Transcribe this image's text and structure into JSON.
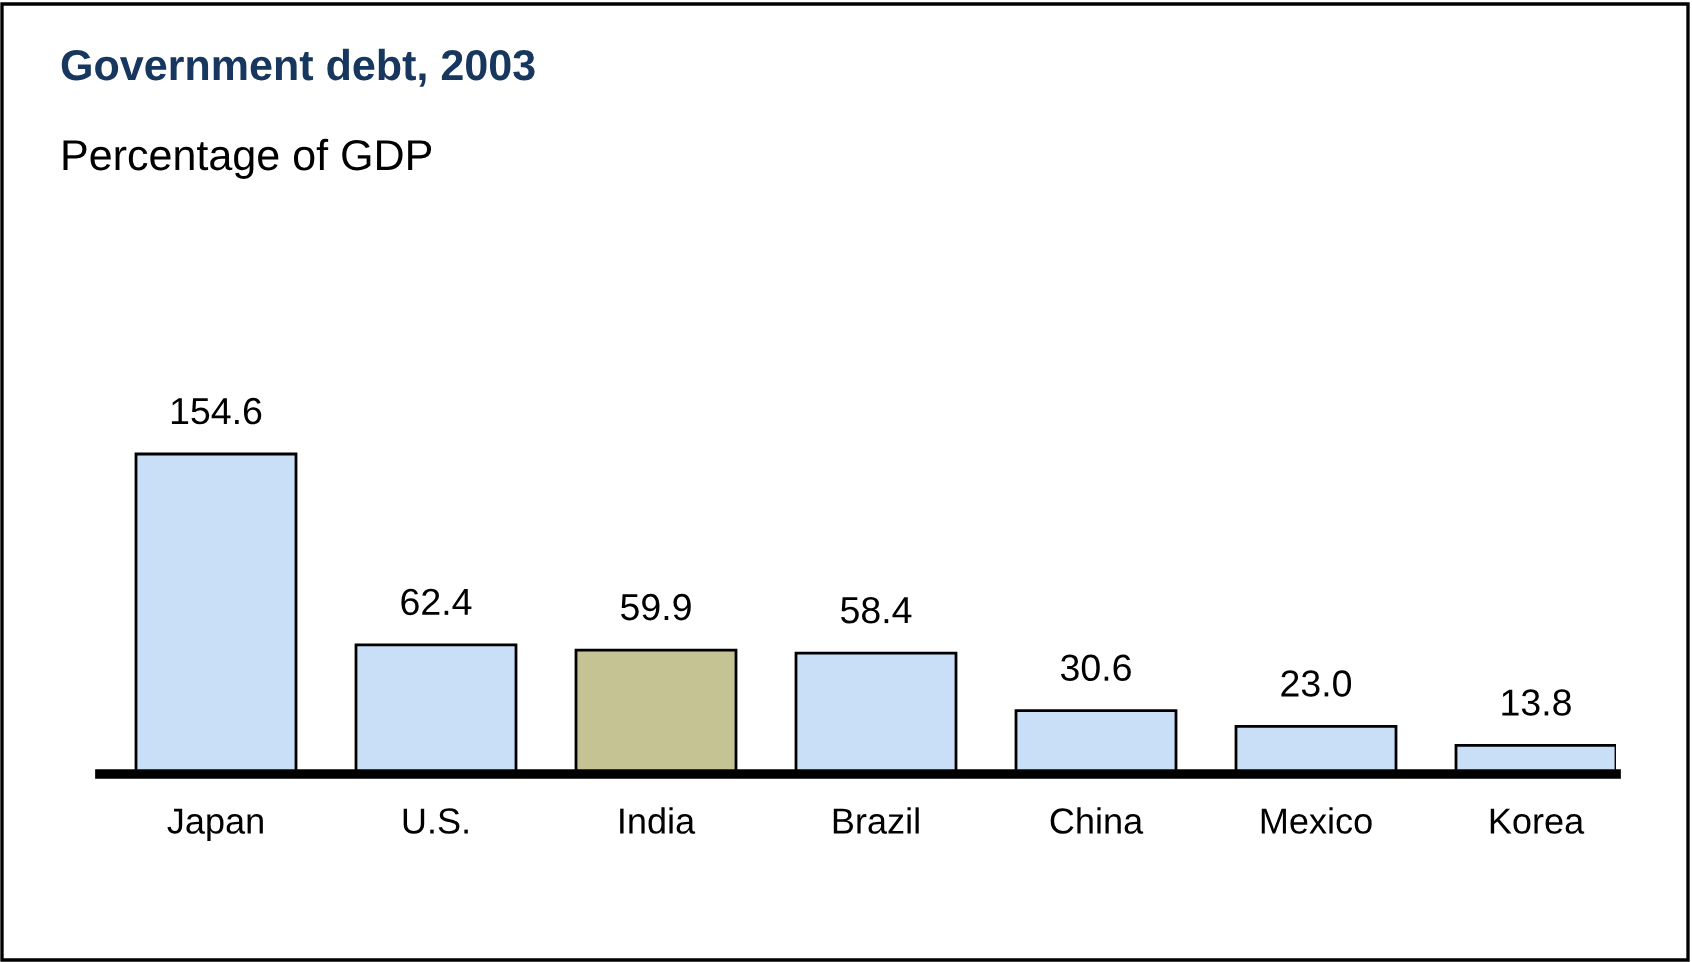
{
  "chart_data": {
    "type": "bar",
    "title": "Government debt, 2003",
    "subtitle": "Percentage of GDP",
    "categories": [
      "Japan",
      "U.S.",
      "India",
      "Brazil",
      "China",
      "Mexico",
      "Korea"
    ],
    "values": [
      154.6,
      62.4,
      59.9,
      58.4,
      30.6,
      23.0,
      13.8
    ],
    "colors": [
      "#c9dff8",
      "#c9dff8",
      "#c5c294",
      "#c9dff8",
      "#c9dff8",
      "#c9dff8",
      "#c9dff8"
    ],
    "value_labels": [
      "154.6",
      "62.4",
      "59.9",
      "58.4",
      "30.6",
      "23.0",
      "13.8"
    ],
    "grid": false,
    "legend": false
  }
}
